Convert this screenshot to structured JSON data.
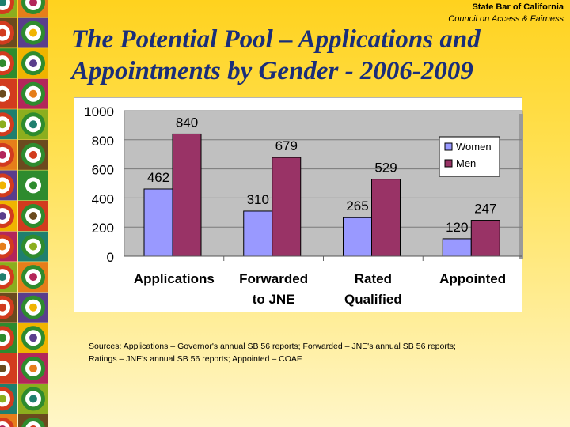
{
  "header": {
    "org_name": "State Bar of California",
    "org_sub": "Council on Access & Fairness"
  },
  "slide": {
    "title": "The Potential Pool – Applications and Appointments by Gender - 2006-2009",
    "sources_line1": "Sources: Applications – Governor's annual SB 56 reports; Forwarded – JNE's annual SB 56 reports;",
    "sources_line2": "Ratings – JNE's annual SB 56 reports; Appointed – COAF"
  },
  "colors": {
    "women": "#9999ff",
    "men": "#993366",
    "plot_bg": "#c0c0c0"
  },
  "chart_data": {
    "type": "bar",
    "title": "",
    "xlabel": "",
    "ylabel": "",
    "ylim": [
      0,
      1000
    ],
    "yticks": [
      0,
      200,
      400,
      600,
      800,
      1000
    ],
    "categories": [
      [
        "Applications"
      ],
      [
        "Forwarded",
        "to JNE"
      ],
      [
        "Rated",
        "Qualified"
      ],
      [
        "Appointed"
      ]
    ],
    "series": [
      {
        "name": "Women",
        "values": [
          462,
          310,
          265,
          120
        ]
      },
      {
        "name": "Men",
        "values": [
          840,
          679,
          529,
          247
        ]
      }
    ],
    "legend": "right",
    "grid": true
  }
}
